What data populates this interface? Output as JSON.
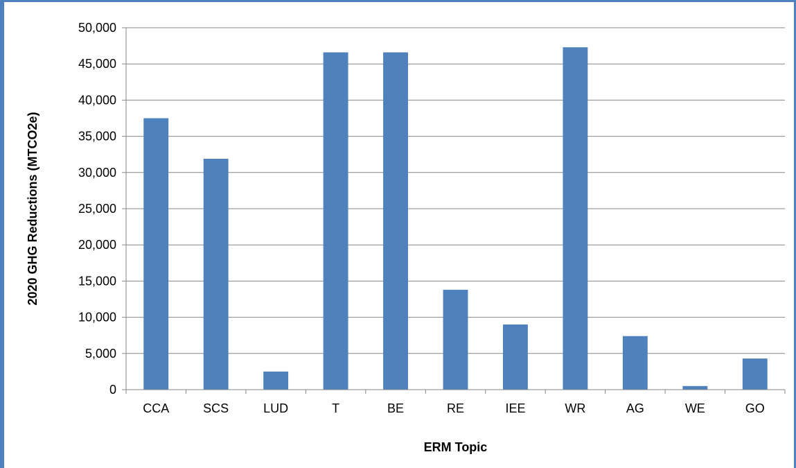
{
  "chart_data": {
    "type": "bar",
    "title": "",
    "xlabel": "ERM Topic",
    "ylabel": "2020 GHG Reductions (MTCO2e)",
    "categories": [
      "CCA",
      "SCS",
      "LUD",
      "T",
      "BE",
      "RE",
      "IEE",
      "WR",
      "AG",
      "WE",
      "GO"
    ],
    "values": [
      37500,
      31900,
      2500,
      46600,
      46600,
      13800,
      9000,
      47300,
      7400,
      500,
      4300
    ],
    "ylim": [
      0,
      50000
    ],
    "yticks": [
      0,
      5000,
      10000,
      15000,
      20000,
      25000,
      30000,
      35000,
      40000,
      45000,
      50000
    ],
    "ytick_labels": [
      "0",
      "5,000",
      "10,000",
      "15,000",
      "20,000",
      "25,000",
      "30,000",
      "35,000",
      "40,000",
      "45,000",
      "50,000"
    ],
    "grid": true,
    "legend": "none",
    "bar_color": "#4f81bd",
    "grid_color": "#868686"
  }
}
